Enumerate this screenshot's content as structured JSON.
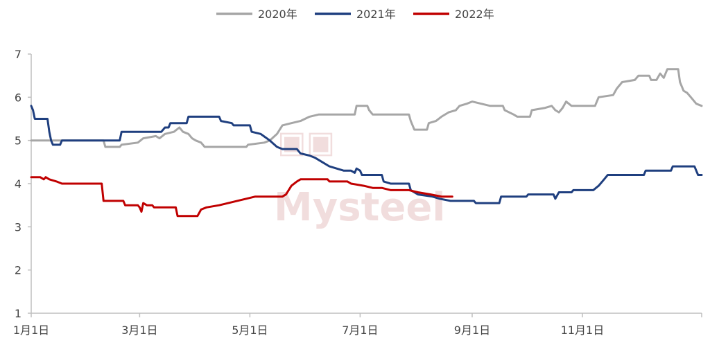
{
  "chart_data": {
    "type": "line",
    "title": "",
    "xlabel": "",
    "ylabel": "",
    "ylim": [
      1,
      7
    ],
    "yticks": [
      "1",
      "2",
      "3",
      "4",
      "5",
      "6",
      "7"
    ],
    "xlim": [
      1,
      366
    ],
    "xticks": [
      {
        "day": 1,
        "label": "1月1日"
      },
      {
        "day": 61,
        "label": "3月1日"
      },
      {
        "day": 122,
        "label": "5月1日"
      },
      {
        "day": 183,
        "label": "7月1日"
      },
      {
        "day": 245,
        "label": "9月1日"
      },
      {
        "day": 306,
        "label": "11月1日"
      }
    ],
    "grid": false,
    "legend_position": "top-center",
    "watermark": "Mysteel",
    "series": [
      {
        "name": "2020年",
        "color": "#a6a6a6",
        "points": [
          [
            1,
            5.0
          ],
          [
            15,
            5.0
          ],
          [
            41,
            5.0
          ],
          [
            42,
            4.85
          ],
          [
            50,
            4.85
          ],
          [
            51,
            4.9
          ],
          [
            60,
            4.95
          ],
          [
            63,
            5.05
          ],
          [
            70,
            5.1
          ],
          [
            72,
            5.05
          ],
          [
            75,
            5.15
          ],
          [
            80,
            5.2
          ],
          [
            83,
            5.3
          ],
          [
            85,
            5.2
          ],
          [
            88,
            5.15
          ],
          [
            90,
            5.05
          ],
          [
            92,
            5.0
          ],
          [
            95,
            4.95
          ],
          [
            97,
            4.85
          ],
          [
            120,
            4.85
          ],
          [
            121,
            4.9
          ],
          [
            130,
            4.95
          ],
          [
            133,
            5.0
          ],
          [
            137,
            5.15
          ],
          [
            140,
            5.35
          ],
          [
            145,
            5.4
          ],
          [
            150,
            5.45
          ],
          [
            155,
            5.55
          ],
          [
            160,
            5.6
          ],
          [
            180,
            5.6
          ],
          [
            181,
            5.8
          ],
          [
            187,
            5.8
          ],
          [
            188,
            5.7
          ],
          [
            190,
            5.6
          ],
          [
            210,
            5.6
          ],
          [
            211,
            5.45
          ],
          [
            213,
            5.25
          ],
          [
            220,
            5.25
          ],
          [
            221,
            5.4
          ],
          [
            225,
            5.45
          ],
          [
            228,
            5.55
          ],
          [
            232,
            5.65
          ],
          [
            236,
            5.7
          ],
          [
            238,
            5.8
          ],
          [
            242,
            5.85
          ],
          [
            245,
            5.9
          ],
          [
            250,
            5.85
          ],
          [
            255,
            5.8
          ],
          [
            262,
            5.8
          ],
          [
            263,
            5.7
          ],
          [
            268,
            5.6
          ],
          [
            270,
            5.55
          ],
          [
            277,
            5.55
          ],
          [
            278,
            5.7
          ],
          [
            285,
            5.75
          ],
          [
            289,
            5.8
          ],
          [
            291,
            5.7
          ],
          [
            293,
            5.65
          ],
          [
            295,
            5.75
          ],
          [
            297,
            5.9
          ],
          [
            300,
            5.8
          ],
          [
            313,
            5.8
          ],
          [
            315,
            6.0
          ],
          [
            323,
            6.05
          ],
          [
            325,
            6.2
          ],
          [
            328,
            6.35
          ],
          [
            335,
            6.4
          ],
          [
            337,
            6.5
          ],
          [
            343,
            6.5
          ],
          [
            344,
            6.4
          ],
          [
            347,
            6.4
          ],
          [
            349,
            6.55
          ],
          [
            351,
            6.45
          ],
          [
            353,
            6.65
          ],
          [
            359,
            6.65
          ],
          [
            360,
            6.35
          ],
          [
            362,
            6.15
          ],
          [
            364,
            6.1
          ],
          [
            366,
            6.0
          ],
          [
            369,
            5.85
          ],
          [
            372,
            5.8
          ]
        ]
      },
      {
        "name": "2021年",
        "color": "#1f3f7f",
        "points": [
          [
            1,
            5.8
          ],
          [
            2,
            5.7
          ],
          [
            3,
            5.5
          ],
          [
            10,
            5.5
          ],
          [
            11,
            5.2
          ],
          [
            12,
            5.0
          ],
          [
            13,
            4.9
          ],
          [
            17,
            4.9
          ],
          [
            18,
            5.0
          ],
          [
            50,
            5.0
          ],
          [
            51,
            5.2
          ],
          [
            73,
            5.2
          ],
          [
            75,
            5.3
          ],
          [
            77,
            5.3
          ],
          [
            78,
            5.4
          ],
          [
            87,
            5.4
          ],
          [
            88,
            5.55
          ],
          [
            105,
            5.55
          ],
          [
            106,
            5.45
          ],
          [
            112,
            5.4
          ],
          [
            113,
            5.35
          ],
          [
            122,
            5.35
          ],
          [
            123,
            5.2
          ],
          [
            128,
            5.15
          ],
          [
            133,
            5.0
          ],
          [
            137,
            4.85
          ],
          [
            140,
            4.8
          ],
          [
            148,
            4.8
          ],
          [
            150,
            4.7
          ],
          [
            155,
            4.65
          ],
          [
            158,
            4.6
          ],
          [
            162,
            4.5
          ],
          [
            166,
            4.4
          ],
          [
            170,
            4.35
          ],
          [
            174,
            4.3
          ],
          [
            178,
            4.3
          ],
          [
            180,
            4.25
          ],
          [
            181,
            4.35
          ],
          [
            183,
            4.3
          ],
          [
            184,
            4.2
          ],
          [
            195,
            4.2
          ],
          [
            196,
            4.05
          ],
          [
            200,
            4.0
          ],
          [
            210,
            4.0
          ],
          [
            211,
            3.85
          ],
          [
            215,
            3.75
          ],
          [
            223,
            3.7
          ],
          [
            227,
            3.65
          ],
          [
            233,
            3.6
          ],
          [
            246,
            3.6
          ],
          [
            247,
            3.55
          ],
          [
            260,
            3.55
          ],
          [
            261,
            3.7
          ],
          [
            275,
            3.7
          ],
          [
            276,
            3.75
          ],
          [
            290,
            3.75
          ],
          [
            291,
            3.65
          ],
          [
            293,
            3.8
          ],
          [
            300,
            3.8
          ],
          [
            301,
            3.85
          ],
          [
            312,
            3.85
          ],
          [
            315,
            3.95
          ],
          [
            318,
            4.1
          ],
          [
            320,
            4.2
          ],
          [
            340,
            4.2
          ],
          [
            341,
            4.3
          ],
          [
            355,
            4.3
          ],
          [
            356,
            4.4
          ],
          [
            368,
            4.4
          ],
          [
            369,
            4.3
          ],
          [
            370,
            4.2
          ],
          [
            372,
            4.2
          ]
        ]
      },
      {
        "name": "2022年",
        "color": "#c00000",
        "points": [
          [
            1,
            4.15
          ],
          [
            6,
            4.15
          ],
          [
            8,
            4.1
          ],
          [
            9,
            4.15
          ],
          [
            11,
            4.1
          ],
          [
            15,
            4.05
          ],
          [
            18,
            4.0
          ],
          [
            40,
            4.0
          ],
          [
            41,
            3.6
          ],
          [
            52,
            3.6
          ],
          [
            53,
            3.5
          ],
          [
            60,
            3.5
          ],
          [
            61,
            3.45
          ],
          [
            62,
            3.35
          ],
          [
            63,
            3.55
          ],
          [
            65,
            3.5
          ],
          [
            68,
            3.5
          ],
          [
            69,
            3.45
          ],
          [
            81,
            3.45
          ],
          [
            82,
            3.25
          ],
          [
            93,
            3.25
          ],
          [
            95,
            3.4
          ],
          [
            98,
            3.45
          ],
          [
            105,
            3.5
          ],
          [
            110,
            3.55
          ],
          [
            115,
            3.6
          ],
          [
            120,
            3.65
          ],
          [
            125,
            3.7
          ],
          [
            140,
            3.7
          ],
          [
            142,
            3.75
          ],
          [
            145,
            3.95
          ],
          [
            148,
            4.05
          ],
          [
            150,
            4.1
          ],
          [
            165,
            4.1
          ],
          [
            166,
            4.05
          ],
          [
            176,
            4.05
          ],
          [
            178,
            4.0
          ],
          [
            185,
            3.95
          ],
          [
            190,
            3.9
          ],
          [
            195,
            3.9
          ],
          [
            200,
            3.85
          ],
          [
            210,
            3.85
          ],
          [
            215,
            3.8
          ],
          [
            222,
            3.75
          ],
          [
            228,
            3.7
          ],
          [
            234,
            3.7
          ]
        ]
      }
    ]
  }
}
